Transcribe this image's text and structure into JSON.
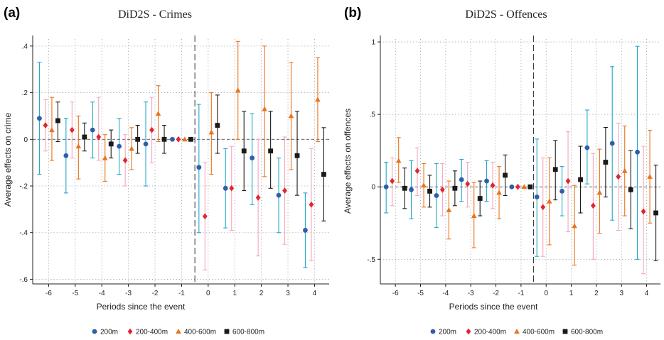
{
  "chart_data": [
    {
      "type": "scatter",
      "panel_label": "a",
      "title": "DiD2S - Crimes",
      "xlabel": "Periods since the event",
      "ylabel": "Average effects on crime",
      "x_ticks": [
        -6,
        -5,
        -4,
        -3,
        -2,
        -1,
        0,
        1,
        2,
        3,
        4
      ],
      "y_ticks": [
        -0.6,
        -0.4,
        -0.2,
        0,
        0.2,
        0.4
      ],
      "y_tick_labels": [
        "-.6",
        "-.4",
        "-.2",
        "0",
        ".2",
        ".4"
      ],
      "xlim": [
        -6.6,
        4.55
      ],
      "ylim": [
        -0.62,
        0.43
      ],
      "event_line_x": -0.5,
      "grid": true,
      "legend_position": "bottom",
      "series": [
        {
          "name": "200m",
          "color": "#2e5fa8",
          "bar_color": "#22a7c9",
          "marker": "circle",
          "values": [
            0.09,
            -0.07,
            0.04,
            -0.03,
            -0.02,
            0.0,
            -0.12,
            -0.21,
            -0.08,
            -0.24,
            -0.39
          ],
          "lower": [
            -0.15,
            -0.23,
            -0.08,
            -0.15,
            -0.2,
            0.0,
            -0.4,
            -0.38,
            -0.28,
            -0.4,
            -0.55
          ],
          "upper": [
            0.33,
            0.09,
            0.16,
            0.09,
            0.16,
            0.0,
            0.15,
            -0.04,
            0.11,
            -0.08,
            -0.23
          ]
        },
        {
          "name": "200-400m",
          "color": "#e0262f",
          "bar_color": "#f2a7bf",
          "marker": "diamond",
          "values": [
            0.06,
            0.04,
            0.01,
            -0.09,
            0.04,
            0.0,
            -0.33,
            -0.21,
            -0.25,
            -0.22,
            -0.28
          ],
          "lower": [
            -0.05,
            -0.08,
            -0.09,
            -0.2,
            -0.1,
            0.0,
            -0.56,
            -0.39,
            -0.5,
            -0.45,
            -0.52
          ],
          "upper": [
            0.17,
            0.16,
            0.18,
            0.02,
            0.18,
            0.0,
            -0.1,
            -0.03,
            0.0,
            0.01,
            -0.04
          ]
        },
        {
          "name": "400-600m",
          "color": "#e8741c",
          "bar_color": "#e8741c",
          "marker": "triangle",
          "values": [
            0.04,
            -0.03,
            -0.08,
            -0.04,
            0.11,
            0.0,
            0.03,
            0.21,
            0.13,
            0.1,
            0.17
          ],
          "lower": [
            -0.09,
            -0.17,
            -0.18,
            -0.13,
            -0.01,
            0.0,
            -0.15,
            0.0,
            -0.16,
            -0.13,
            -0.01
          ],
          "upper": [
            0.18,
            0.1,
            0.02,
            0.05,
            0.23,
            0.0,
            0.2,
            0.42,
            0.4,
            0.33,
            0.35
          ]
        },
        {
          "name": "600-800m",
          "color": "#1a1a1a",
          "bar_color": "#1a1a1a",
          "marker": "square",
          "values": [
            0.08,
            0.01,
            -0.02,
            0.0,
            0.0,
            0.0,
            0.06,
            -0.05,
            -0.05,
            -0.07,
            -0.15
          ],
          "lower": [
            -0.01,
            -0.05,
            -0.08,
            -0.06,
            -0.06,
            0.0,
            -0.06,
            -0.22,
            -0.21,
            -0.24,
            -0.35
          ],
          "upper": [
            0.16,
            0.07,
            0.04,
            0.06,
            0.06,
            0.0,
            0.19,
            0.12,
            0.12,
            0.12,
            0.05
          ]
        }
      ]
    },
    {
      "type": "scatter",
      "panel_label": "b",
      "title": "DiD2S - Offences",
      "xlabel": "Periods since the event",
      "ylabel": "Average effects on offences",
      "x_ticks": [
        -6,
        -5,
        -4,
        -3,
        -2,
        -1,
        0,
        1,
        2,
        3,
        4
      ],
      "y_ticks": [
        -0.5,
        0,
        0.5,
        1
      ],
      "y_tick_labels": [
        "-.5",
        "0",
        ".5",
        "1"
      ],
      "xlim": [
        -6.6,
        4.55
      ],
      "ylim": [
        -0.67,
        1.02
      ],
      "event_line_x": -0.5,
      "grid": true,
      "legend_position": "bottom",
      "series": [
        {
          "name": "200m",
          "color": "#2e5fa8",
          "bar_color": "#22a7c9",
          "marker": "circle",
          "values": [
            0.0,
            -0.02,
            -0.06,
            0.05,
            0.04,
            0.0,
            -0.07,
            -0.03,
            0.27,
            0.3,
            0.24
          ],
          "lower": [
            -0.18,
            -0.22,
            -0.28,
            -0.1,
            -0.1,
            0.0,
            -0.48,
            -0.2,
            0.02,
            -0.23,
            -0.5
          ],
          "upper": [
            0.17,
            0.18,
            0.16,
            0.19,
            0.18,
            0.0,
            0.33,
            0.14,
            0.53,
            0.83,
            0.97
          ]
        },
        {
          "name": "200-400m",
          "color": "#e0262f",
          "bar_color": "#f2a7bf",
          "marker": "diamond",
          "values": [
            0.04,
            0.11,
            -0.02,
            0.02,
            0.01,
            0.0,
            -0.14,
            0.04,
            -0.13,
            0.07,
            -0.17
          ],
          "lower": [
            -0.13,
            -0.06,
            -0.2,
            -0.14,
            -0.15,
            0.0,
            -0.48,
            -0.31,
            -0.5,
            -0.3,
            -0.6
          ],
          "upper": [
            0.2,
            0.27,
            0.16,
            0.17,
            0.17,
            0.0,
            0.2,
            0.38,
            0.23,
            0.44,
            0.28
          ]
        },
        {
          "name": "400-600m",
          "color": "#e8741c",
          "bar_color": "#e8741c",
          "marker": "triangle",
          "values": [
            0.18,
            0.01,
            -0.16,
            -0.2,
            -0.04,
            0.0,
            -0.1,
            -0.27,
            -0.04,
            0.11,
            0.07
          ],
          "lower": [
            0.03,
            -0.14,
            -0.36,
            -0.42,
            -0.22,
            0.0,
            -0.4,
            -0.54,
            -0.32,
            -0.2,
            -0.25
          ],
          "upper": [
            0.34,
            0.16,
            0.04,
            0.03,
            0.14,
            0.0,
            0.2,
            0.01,
            0.26,
            0.42,
            0.39
          ]
        },
        {
          "name": "600-800m",
          "color": "#1a1a1a",
          "bar_color": "#1a1a1a",
          "marker": "square",
          "values": [
            -0.01,
            -0.03,
            -0.01,
            -0.08,
            0.08,
            0.0,
            0.12,
            0.05,
            0.17,
            -0.02,
            -0.18
          ],
          "lower": [
            -0.15,
            -0.14,
            -0.13,
            -0.2,
            -0.06,
            0.0,
            -0.09,
            -0.18,
            -0.07,
            -0.29,
            -0.51
          ],
          "upper": [
            0.13,
            0.08,
            0.11,
            0.04,
            0.22,
            0.0,
            0.32,
            0.28,
            0.41,
            0.25,
            0.15
          ]
        }
      ]
    }
  ]
}
